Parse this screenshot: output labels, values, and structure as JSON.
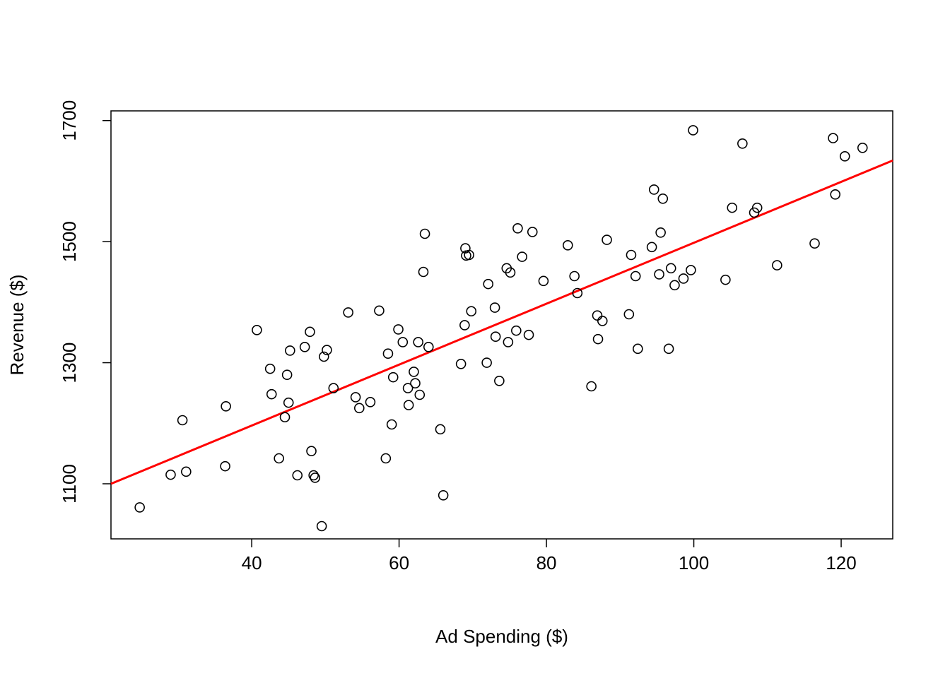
{
  "chart_data": {
    "type": "scatter",
    "title": "",
    "xlabel": "Ad Spending ($)",
    "ylabel": "Revenue ($)",
    "xlim": [
      20.9,
      127
    ],
    "ylim": [
      1009,
      1716
    ],
    "x_ticks": [
      40,
      60,
      80,
      100,
      120
    ],
    "y_ticks": [
      1100,
      1300,
      1500,
      1700
    ],
    "grid": false,
    "colors": {
      "points": "#000000",
      "fit_line": "#ff0000"
    },
    "regression_line": {
      "x": [
        20.9,
        127
      ],
      "y": [
        1100,
        1634
      ]
    },
    "points": [
      [
        24.8,
        1061
      ],
      [
        29.0,
        1115
      ],
      [
        30.6,
        1205
      ],
      [
        31.1,
        1120
      ],
      [
        36.5,
        1228
      ],
      [
        36.4,
        1129
      ],
      [
        40.7,
        1354
      ],
      [
        42.5,
        1290
      ],
      [
        42.7,
        1248
      ],
      [
        43.7,
        1142
      ],
      [
        44.5,
        1210
      ],
      [
        44.8,
        1280
      ],
      [
        45.0,
        1234
      ],
      [
        45.2,
        1320
      ],
      [
        46.2,
        1114
      ],
      [
        47.2,
        1326
      ],
      [
        47.9,
        1351
      ],
      [
        48.1,
        1154
      ],
      [
        48.4,
        1114
      ],
      [
        48.6,
        1110
      ],
      [
        49.5,
        1030
      ],
      [
        49.8,
        1310
      ],
      [
        50.2,
        1321
      ],
      [
        51.1,
        1258
      ],
      [
        53.1,
        1383
      ],
      [
        54.1,
        1243
      ],
      [
        54.6,
        1225
      ],
      [
        56.1,
        1235
      ],
      [
        57.3,
        1386
      ],
      [
        58.2,
        1142
      ],
      [
        58.5,
        1315
      ],
      [
        59.0,
        1198
      ],
      [
        59.2,
        1276
      ],
      [
        59.9,
        1355
      ],
      [
        60.5,
        1334
      ],
      [
        61.2,
        1258
      ],
      [
        61.3,
        1230
      ],
      [
        62.0,
        1285
      ],
      [
        62.2,
        1266
      ],
      [
        62.6,
        1334
      ],
      [
        62.8,
        1247
      ],
      [
        63.3,
        1450
      ],
      [
        63.5,
        1513
      ],
      [
        64.0,
        1326
      ],
      [
        65.6,
        1190
      ],
      [
        66.0,
        1081
      ],
      [
        68.4,
        1298
      ],
      [
        68.9,
        1362
      ],
      [
        69.0,
        1489
      ],
      [
        69.1,
        1477
      ],
      [
        69.5,
        1478
      ],
      [
        69.8,
        1385
      ],
      [
        71.9,
        1300
      ],
      [
        72.1,
        1430
      ],
      [
        73.0,
        1391
      ],
      [
        73.1,
        1343
      ],
      [
        73.6,
        1270
      ],
      [
        74.6,
        1456
      ],
      [
        74.8,
        1334
      ],
      [
        75.1,
        1449
      ],
      [
        75.9,
        1353
      ],
      [
        76.1,
        1522
      ],
      [
        76.7,
        1475
      ],
      [
        77.6,
        1346
      ],
      [
        78.1,
        1516
      ],
      [
        79.6,
        1435
      ],
      [
        82.9,
        1494
      ],
      [
        83.8,
        1443
      ],
      [
        84.2,
        1415
      ],
      [
        86.1,
        1261
      ],
      [
        86.9,
        1378
      ],
      [
        87.0,
        1339
      ],
      [
        87.6,
        1369
      ],
      [
        88.2,
        1503
      ],
      [
        91.2,
        1380
      ],
      [
        91.5,
        1478
      ],
      [
        92.1,
        1443
      ],
      [
        92.4,
        1323
      ],
      [
        94.3,
        1491
      ],
      [
        94.6,
        1586
      ],
      [
        95.3,
        1446
      ],
      [
        95.5,
        1515
      ],
      [
        95.8,
        1571
      ],
      [
        96.6,
        1323
      ],
      [
        96.9,
        1456
      ],
      [
        97.4,
        1428
      ],
      [
        98.6,
        1439
      ],
      [
        99.6,
        1453
      ],
      [
        99.9,
        1684
      ],
      [
        104.3,
        1437
      ],
      [
        105.2,
        1556
      ],
      [
        106.6,
        1662
      ],
      [
        108.2,
        1548
      ],
      [
        108.6,
        1556
      ],
      [
        111.3,
        1461
      ],
      [
        116.4,
        1497
      ],
      [
        118.9,
        1671
      ],
      [
        119.2,
        1578
      ],
      [
        120.5,
        1641
      ],
      [
        122.9,
        1655
      ]
    ]
  }
}
